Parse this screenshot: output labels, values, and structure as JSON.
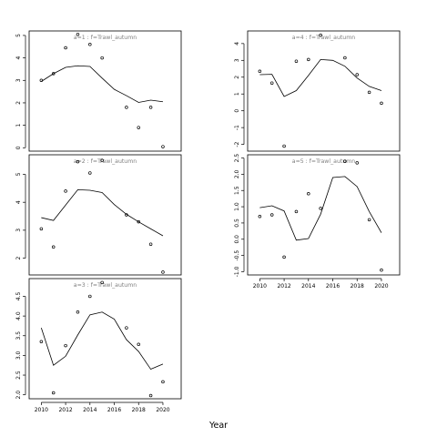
{
  "chart_data": {
    "type": "scatter",
    "xlabel": "Year",
    "x_ticks": [
      2010,
      2012,
      2014,
      2016,
      2018,
      2020
    ],
    "panels": [
      {
        "title": "a=1 : f=Trawl_autumn",
        "xlim": [
          2009,
          2021.5
        ],
        "ylim": [
          -0.15,
          5.2
        ],
        "y_ticks": [
          0,
          1,
          2,
          3,
          4,
          5
        ],
        "y_tick_labels": [
          "0",
          "1",
          "2",
          "3",
          "4",
          "5"
        ],
        "points": [
          [
            2010,
            3.0
          ],
          [
            2011,
            3.3
          ],
          [
            2012,
            4.45
          ],
          [
            2013,
            5.05
          ],
          [
            2014,
            4.6
          ],
          [
            2015,
            4.0
          ],
          [
            2017,
            1.8
          ],
          [
            2018,
            0.9
          ],
          [
            2019,
            1.8
          ],
          [
            2020,
            0.05
          ]
        ],
        "fit": [
          [
            2010,
            2.95
          ],
          [
            2011,
            3.3
          ],
          [
            2012,
            3.58
          ],
          [
            2013,
            3.65
          ],
          [
            2014,
            3.62
          ],
          [
            2015,
            3.1
          ],
          [
            2016,
            2.6
          ],
          [
            2017,
            2.32
          ],
          [
            2018,
            2.02
          ],
          [
            2019,
            2.12
          ],
          [
            2020,
            2.05
          ]
        ]
      },
      {
        "title": "a=2 : f=Trawl_autumn",
        "xlim": [
          2009,
          2021.5
        ],
        "ylim": [
          1.4,
          5.7
        ],
        "y_ticks": [
          2,
          3,
          4,
          5
        ],
        "y_tick_labels": [
          "2",
          "3",
          "4",
          "5"
        ],
        "points": [
          [
            2010,
            3.05
          ],
          [
            2011,
            2.4
          ],
          [
            2012,
            4.4
          ],
          [
            2013,
            5.45
          ],
          [
            2014,
            5.05
          ],
          [
            2015,
            5.5
          ],
          [
            2017,
            3.55
          ],
          [
            2018,
            3.3
          ],
          [
            2019,
            2.5
          ],
          [
            2020,
            1.5
          ]
        ],
        "fit": [
          [
            2010,
            3.45
          ],
          [
            2011,
            3.35
          ],
          [
            2012,
            3.9
          ],
          [
            2013,
            4.45
          ],
          [
            2014,
            4.43
          ],
          [
            2015,
            4.35
          ],
          [
            2016,
            3.92
          ],
          [
            2017,
            3.57
          ],
          [
            2018,
            3.3
          ],
          [
            2019,
            3.05
          ],
          [
            2020,
            2.8
          ]
        ]
      },
      {
        "title": "a=3 : f=Trawl_autumn",
        "xlim": [
          2009,
          2021.5
        ],
        "ylim": [
          1.9,
          4.95
        ],
        "y_ticks": [
          2.0,
          2.5,
          3.0,
          3.5,
          4.0,
          4.5
        ],
        "y_tick_labels": [
          "2.0",
          "2.5",
          "3.0",
          "3.5",
          "4.0",
          "4.5"
        ],
        "points": [
          [
            2010,
            3.35
          ],
          [
            2011,
            2.05
          ],
          [
            2012,
            3.25
          ],
          [
            2013,
            4.1
          ],
          [
            2014,
            4.5
          ],
          [
            2015,
            4.85
          ],
          [
            2017,
            3.7
          ],
          [
            2018,
            3.28
          ],
          [
            2019,
            1.98
          ],
          [
            2020,
            2.33
          ]
        ],
        "fit": [
          [
            2010,
            3.7
          ],
          [
            2011,
            2.75
          ],
          [
            2012,
            2.98
          ],
          [
            2013,
            3.52
          ],
          [
            2014,
            4.03
          ],
          [
            2015,
            4.1
          ],
          [
            2016,
            3.92
          ],
          [
            2017,
            3.4
          ],
          [
            2018,
            3.1
          ],
          [
            2019,
            2.65
          ],
          [
            2020,
            2.78
          ]
        ]
      },
      {
        "title": "a=4 : f=Trawl_autumn",
        "xlim": [
          2009,
          2021.5
        ],
        "ylim": [
          -2.4,
          4.75
        ],
        "y_ticks": [
          -2,
          -1,
          0,
          1,
          2,
          3,
          4
        ],
        "y_tick_labels": [
          "-2",
          "-1",
          "0",
          "1",
          "2",
          "3",
          "4"
        ],
        "points": [
          [
            2010,
            2.35
          ],
          [
            2011,
            1.65
          ],
          [
            2012,
            -2.1
          ],
          [
            2013,
            2.95
          ],
          [
            2014,
            3.05
          ],
          [
            2015,
            4.5
          ],
          [
            2017,
            3.15
          ],
          [
            2018,
            2.15
          ],
          [
            2019,
            1.1
          ],
          [
            2020,
            0.45
          ]
        ],
        "fit": [
          [
            2010,
            2.15
          ],
          [
            2011,
            2.17
          ],
          [
            2012,
            0.85
          ],
          [
            2013,
            1.2
          ],
          [
            2014,
            2.1
          ],
          [
            2015,
            3.05
          ],
          [
            2016,
            3.0
          ],
          [
            2017,
            2.65
          ],
          [
            2018,
            1.95
          ],
          [
            2019,
            1.45
          ],
          [
            2020,
            1.2
          ]
        ]
      },
      {
        "title": "a=5 : f=Trawl_autumn",
        "xlim": [
          2009,
          2021.5
        ],
        "ylim": [
          -1.1,
          2.6
        ],
        "y_ticks": [
          -1.0,
          -0.5,
          0.0,
          0.5,
          1.0,
          1.5,
          2.0,
          2.5
        ],
        "y_tick_labels": [
          "-1.0",
          "-0.5",
          "0.0",
          "0.5",
          "1.0",
          "1.5",
          "2.0",
          "2.5"
        ],
        "points": [
          [
            2010,
            0.7
          ],
          [
            2011,
            0.75
          ],
          [
            2012,
            -0.55
          ],
          [
            2013,
            0.85
          ],
          [
            2014,
            1.4
          ],
          [
            2015,
            0.95
          ],
          [
            2017,
            2.4
          ],
          [
            2018,
            2.35
          ],
          [
            2019,
            0.6
          ],
          [
            2020,
            -0.95
          ]
        ],
        "fit": [
          [
            2010,
            0.97
          ],
          [
            2011,
            1.03
          ],
          [
            2012,
            0.87
          ],
          [
            2013,
            -0.03
          ],
          [
            2014,
            0.02
          ],
          [
            2015,
            0.77
          ],
          [
            2016,
            1.9
          ],
          [
            2017,
            1.93
          ],
          [
            2018,
            1.62
          ],
          [
            2019,
            0.85
          ],
          [
            2020,
            0.2
          ]
        ]
      }
    ]
  }
}
